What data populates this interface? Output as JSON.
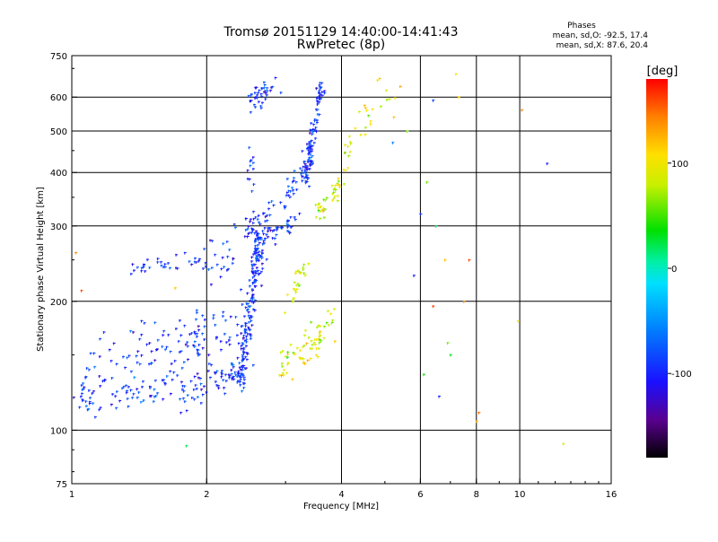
{
  "chart_data": {
    "type": "scatter",
    "title": "Tromsø 20151129 14:40:00-14:41:43",
    "subtitle": "RwPretec (8p)",
    "xlabel": "Frequency [MHz]",
    "ylabel": "Stationary phase Virtual Height [km]",
    "x_scale": "log",
    "y_scale": "log",
    "xlim": [
      1,
      16
    ],
    "ylim": [
      75,
      750
    ],
    "x_ticks": [
      {
        "value": 1,
        "label": "1"
      },
      {
        "value": 2,
        "label": "2"
      },
      {
        "value": 4,
        "label": "4"
      },
      {
        "value": 6,
        "label": "6"
      },
      {
        "value": 8,
        "label": "8"
      },
      {
        "value": 10,
        "label": "10"
      },
      {
        "value": 16,
        "label": "16"
      }
    ],
    "x_grid": [
      2,
      4,
      6,
      8,
      10
    ],
    "y_ticks": [
      {
        "value": 75,
        "label": "75"
      },
      {
        "value": 100,
        "label": "100"
      },
      {
        "value": 200,
        "label": "200"
      },
      {
        "value": 300,
        "label": "300"
      },
      {
        "value": 400,
        "label": "400"
      },
      {
        "value": 500,
        "label": "500"
      },
      {
        "value": 600,
        "label": "600"
      },
      {
        "value": 750,
        "label": "750"
      }
    ],
    "y_grid": [
      100,
      200,
      300,
      400,
      500,
      600
    ],
    "grid": true,
    "colorbar": {
      "label": "[deg]",
      "range": [
        -180,
        180
      ],
      "ticks": [
        {
          "value": 100,
          "label": "100"
        },
        {
          "value": 0,
          "label": "0"
        },
        {
          "value": -100,
          "label": "-100"
        }
      ]
    },
    "stats": {
      "heading": "Phases",
      "line1": "mean, sd,O: -92.5, 17.4",
      "line2": "mean, sd,X: 87.6, 20.4"
    },
    "o_mode_phase": -92.5,
    "x_mode_phase": 87.6,
    "traces": [
      {
        "mode": "O",
        "f": [
          1.02,
          1.3,
          1.6,
          1.9,
          2.2,
          2.45
        ],
        "h": [
          115,
          122,
          125,
          126,
          132,
          140
        ],
        "density": 130,
        "spread": 0.05
      },
      {
        "mode": "O",
        "f": [
          1.02,
          1.3,
          1.7,
          2.2,
          2.45
        ],
        "h": [
          125,
          140,
          155,
          165,
          175
        ],
        "density": 100,
        "spread": 0.08
      },
      {
        "mode": "O",
        "f": [
          1.05,
          1.4,
          1.8,
          2.2
        ],
        "h": [
          135,
          160,
          175,
          190
        ],
        "density": 40,
        "spread": 0.08
      },
      {
        "mode": "O",
        "f": [
          2.38,
          2.45,
          2.55,
          2.62
        ],
        "h": [
          130,
          170,
          230,
          285
        ],
        "density": 140,
        "spread": 0.035
      },
      {
        "mode": "O",
        "f": [
          2.4,
          2.45,
          2.55,
          2.65,
          2.75
        ],
        "h": [
          140,
          180,
          240,
          270,
          300
        ],
        "density": 40,
        "spread": 0.05
      },
      {
        "mode": "O",
        "f": [
          1.35,
          1.5,
          1.7,
          1.9,
          2.1,
          2.3
        ],
        "h": [
          238,
          242,
          247,
          245,
          244,
          246
        ],
        "density": 45,
        "spread": 0.025
      },
      {
        "mode": "O",
        "f": [
          2.0,
          2.15,
          2.3
        ],
        "h": [
          260,
          275,
          285
        ],
        "density": 12,
        "spread": 0.04
      },
      {
        "mode": "O",
        "f": [
          2.45,
          2.7,
          2.95,
          3.2
        ],
        "h": [
          285,
          290,
          296,
          310
        ],
        "density": 50,
        "spread": 0.025
      },
      {
        "mode": "O",
        "f": [
          2.45,
          2.6,
          2.9,
          3.15,
          3.45
        ],
        "h": [
          300,
          318,
          340,
          380,
          450
        ],
        "density": 60,
        "spread": 0.04
      },
      {
        "mode": "O",
        "f": [
          3.3,
          3.45,
          3.6
        ],
        "h": [
          380,
          480,
          640
        ],
        "density": 110,
        "spread": 0.03
      },
      {
        "mode": "O",
        "f": [
          2.5,
          2.6,
          2.7,
          2.9
        ],
        "h": [
          580,
          600,
          625,
          640
        ],
        "density": 40,
        "spread": 0.03
      },
      {
        "mode": "O",
        "f": [
          2.45,
          2.5,
          2.55
        ],
        "h": [
          360,
          420,
          480
        ],
        "density": 12,
        "spread": 0.04
      },
      {
        "mode": "X",
        "f": [
          2.9,
          3.2,
          3.5,
          3.8
        ],
        "h": [
          140,
          150,
          160,
          175
        ],
        "density": 70,
        "spread": 0.06
      },
      {
        "mode": "X",
        "f": [
          3.05,
          3.2,
          3.35
        ],
        "h": [
          195,
          225,
          250
        ],
        "density": 25,
        "spread": 0.04
      },
      {
        "mode": "X",
        "f": [
          3.55,
          3.75,
          3.95,
          4.3
        ],
        "h": [
          320,
          340,
          380,
          480
        ],
        "density": 45,
        "spread": 0.035
      },
      {
        "mode": "X",
        "f": [
          4.1,
          4.4,
          4.6,
          4.9,
          5.5
        ],
        "h": [
          460,
          520,
          560,
          600,
          560
        ],
        "density": 25,
        "spread": 0.05
      }
    ],
    "scatter_points": [
      {
        "f": 1.8,
        "h": 92,
        "phase": 20
      },
      {
        "f": 12.5,
        "h": 93,
        "phase": 90
      },
      {
        "f": 7.2,
        "h": 680,
        "phase": 100
      },
      {
        "f": 6.2,
        "h": 380,
        "phase": 60
      },
      {
        "f": 6.5,
        "h": 300,
        "phase": 20
      },
      {
        "f": 6.8,
        "h": 250,
        "phase": 120
      },
      {
        "f": 7.5,
        "h": 200,
        "phase": 140
      },
      {
        "f": 8.1,
        "h": 110,
        "phase": 150
      },
      {
        "f": 9.9,
        "h": 180,
        "phase": 100
      },
      {
        "f": 10.1,
        "h": 560,
        "phase": 140
      },
      {
        "f": 11.5,
        "h": 420,
        "phase": -100
      },
      {
        "f": 6.0,
        "h": 320,
        "phase": -100
      },
      {
        "f": 5.8,
        "h": 230,
        "phase": -100
      },
      {
        "f": 6.6,
        "h": 120,
        "phase": -100
      },
      {
        "f": 7.7,
        "h": 250,
        "phase": 160
      },
      {
        "f": 7.0,
        "h": 150,
        "phase": 30
      },
      {
        "f": 6.1,
        "h": 135,
        "phase": 40
      },
      {
        "f": 7.3,
        "h": 600,
        "phase": 110
      },
      {
        "f": 8.0,
        "h": 105,
        "phase": 130
      },
      {
        "f": 5.2,
        "h": 470,
        "phase": -60
      },
      {
        "f": 1.7,
        "h": 215,
        "phase": 120
      },
      {
        "f": 1.05,
        "h": 212,
        "phase": 160
      },
      {
        "f": 1.02,
        "h": 260,
        "phase": 140
      },
      {
        "f": 1.75,
        "h": 110,
        "phase": -110
      },
      {
        "f": 6.4,
        "h": 590,
        "phase": -90
      },
      {
        "f": 5.6,
        "h": 500,
        "phase": 60
      },
      {
        "f": 6.9,
        "h": 160,
        "phase": 60
      },
      {
        "f": 6.4,
        "h": 195,
        "phase": 160
      }
    ]
  }
}
